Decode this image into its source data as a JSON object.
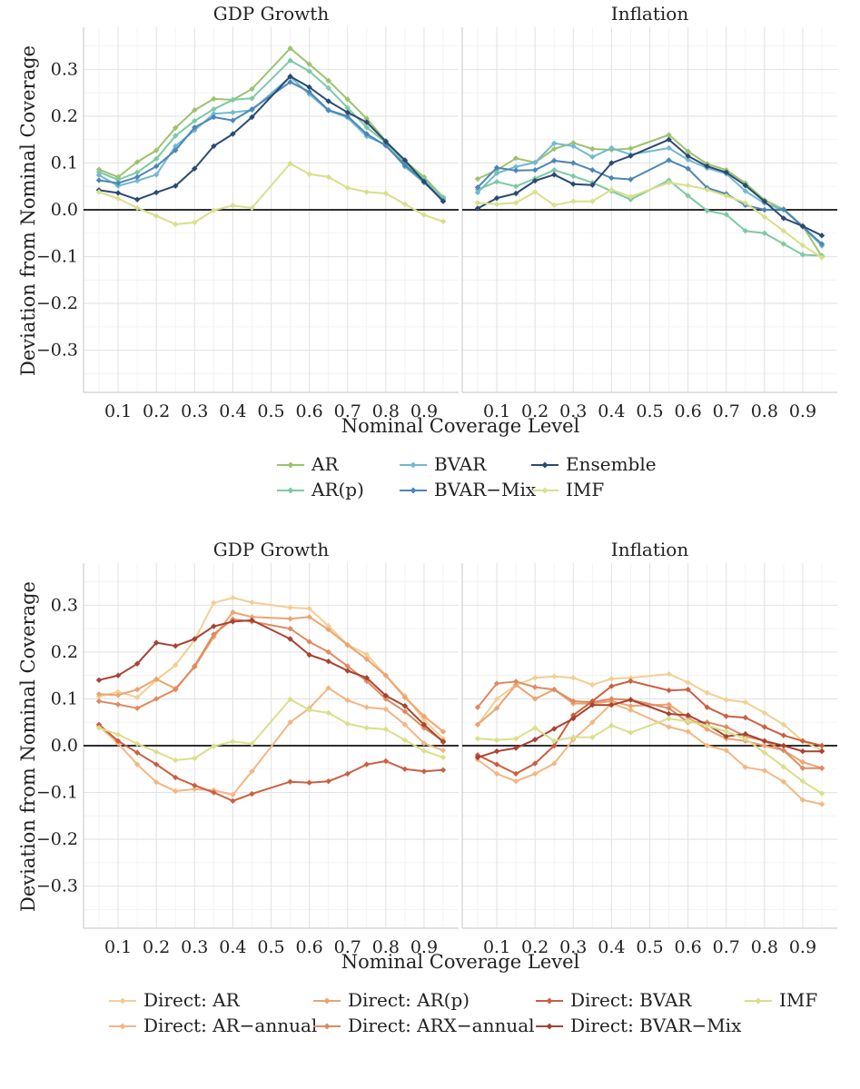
{
  "chart_data": [
    {
      "type": "line",
      "facets": [
        "GDP Growth",
        "Inflation"
      ],
      "xlabel": "Nominal Coverage Level",
      "ylabel": "Deviation from Nominal Coverage",
      "x": [
        0.05,
        0.1,
        0.15,
        0.2,
        0.25,
        0.3,
        0.35,
        0.4,
        0.45,
        0.55,
        0.6,
        0.65,
        0.7,
        0.75,
        0.8,
        0.85,
        0.9,
        0.95
      ],
      "xticks": [
        0.1,
        0.2,
        0.3,
        0.4,
        0.5,
        0.6,
        0.7,
        0.8,
        0.9
      ],
      "xtick_labels": [
        "0.1",
        "0.2",
        "0.3",
        "0.4",
        "0.5",
        "0.6",
        "0.7",
        "0.8",
        "0.9"
      ],
      "ylim": [
        -0.39,
        0.39
      ],
      "yticks": [
        -0.3,
        -0.2,
        -0.1,
        0.0,
        0.1,
        0.2,
        0.3
      ],
      "ytick_labels": [
        "−0.3",
        "−0.2",
        "−0.1",
        "0.0",
        "0.1",
        "0.2",
        "0.3"
      ],
      "grid": true,
      "legend_position": "bottom",
      "legend_columns": 3,
      "series": [
        {
          "name": "AR",
          "color": "#9dc26f",
          "GDP Growth": [
            0.086,
            0.07,
            0.102,
            0.127,
            0.175,
            0.213,
            0.237,
            0.235,
            0.258,
            0.345,
            0.311,
            0.276,
            0.236,
            0.195,
            0.147,
            0.104,
            0.07,
            0.027
          ],
          "Inflation": [
            0.066,
            0.085,
            0.11,
            0.101,
            0.13,
            0.143,
            0.13,
            0.128,
            0.131,
            0.16,
            0.125,
            0.098,
            0.085,
            0.057,
            0.021,
            0.001,
            -0.034,
            -0.1
          ]
        },
        {
          "name": "AR(p)",
          "color": "#7ccaa4",
          "GDP Growth": [
            0.081,
            0.064,
            0.08,
            0.109,
            0.158,
            0.19,
            0.215,
            0.235,
            0.238,
            0.319,
            0.296,
            0.26,
            0.218,
            0.176,
            0.144,
            0.1,
            0.066,
            0.025
          ],
          "Inflation": [
            0.043,
            0.06,
            0.05,
            0.067,
            0.085,
            0.072,
            0.058,
            0.04,
            0.022,
            0.063,
            0.03,
            -0.002,
            -0.01,
            -0.045,
            -0.05,
            -0.073,
            -0.096,
            -0.098
          ]
        },
        {
          "name": "BVAR",
          "color": "#72b8d0",
          "GDP Growth": [
            0.074,
            0.051,
            0.062,
            0.075,
            0.136,
            0.17,
            0.205,
            0.208,
            0.213,
            0.284,
            0.247,
            0.212,
            0.197,
            0.157,
            0.139,
            0.092,
            0.058,
            0.022
          ],
          "Inflation": [
            0.037,
            0.078,
            0.092,
            0.101,
            0.142,
            0.136,
            0.113,
            0.132,
            0.118,
            0.132,
            0.107,
            0.089,
            0.077,
            0.04,
            0.014,
            0.0,
            -0.036,
            -0.077
          ]
        },
        {
          "name": "BVAR−Mix",
          "color": "#4c86b8",
          "GDP Growth": [
            0.063,
            0.057,
            0.07,
            0.093,
            0.127,
            0.176,
            0.198,
            0.191,
            0.215,
            0.273,
            0.252,
            0.213,
            0.2,
            0.162,
            0.137,
            0.095,
            0.061,
            0.019
          ],
          "Inflation": [
            0.048,
            0.09,
            0.084,
            0.085,
            0.105,
            0.1,
            0.085,
            0.068,
            0.065,
            0.106,
            0.088,
            0.047,
            0.034,
            0.01,
            0.0,
            0.001,
            -0.036,
            -0.073
          ]
        },
        {
          "name": "Ensemble",
          "color": "#2a4a73",
          "GDP Growth": [
            0.042,
            0.036,
            0.022,
            0.037,
            0.051,
            0.088,
            0.136,
            0.162,
            0.198,
            0.285,
            0.262,
            0.232,
            0.208,
            0.187,
            0.146,
            0.106,
            0.06,
            0.018
          ],
          "Inflation": [
            0.003,
            0.025,
            0.035,
            0.062,
            0.075,
            0.055,
            0.053,
            0.1,
            0.115,
            0.15,
            0.115,
            0.093,
            0.08,
            0.052,
            0.018,
            -0.018,
            -0.035,
            -0.055
          ]
        },
        {
          "name": "IMF",
          "color": "#d9df8a",
          "GDP Growth": [
            0.038,
            0.024,
            0.004,
            -0.013,
            -0.031,
            -0.027,
            -0.001,
            0.009,
            0.004,
            0.099,
            0.076,
            0.07,
            0.047,
            0.038,
            0.035,
            0.012,
            -0.011,
            -0.025
          ],
          "Inflation": [
            0.015,
            0.012,
            0.015,
            0.038,
            0.01,
            0.018,
            0.018,
            0.043,
            0.028,
            0.058,
            0.052,
            0.043,
            0.03,
            0.015,
            -0.015,
            -0.045,
            -0.076,
            -0.102
          ]
        }
      ]
    },
    {
      "type": "line",
      "facets": [
        "GDP Growth",
        "Inflation"
      ],
      "xlabel": "Nominal Coverage Level",
      "ylabel": "Deviation from Nominal Coverage",
      "x": [
        0.05,
        0.1,
        0.15,
        0.2,
        0.25,
        0.3,
        0.35,
        0.4,
        0.45,
        0.55,
        0.6,
        0.65,
        0.7,
        0.75,
        0.8,
        0.85,
        0.9,
        0.95
      ],
      "xticks": [
        0.1,
        0.2,
        0.3,
        0.4,
        0.5,
        0.6,
        0.7,
        0.8,
        0.9
      ],
      "xtick_labels": [
        "0.1",
        "0.2",
        "0.3",
        "0.4",
        "0.5",
        "0.6",
        "0.7",
        "0.8",
        "0.9"
      ],
      "ylim": [
        -0.39,
        0.39
      ],
      "yticks": [
        -0.3,
        -0.2,
        -0.1,
        0.0,
        0.1,
        0.2,
        0.3
      ],
      "ytick_labels": [
        "−0.3",
        "−0.2",
        "−0.1",
        "0.0",
        "0.1",
        "0.2",
        "0.3"
      ],
      "grid": true,
      "legend_position": "bottom",
      "legend_columns": 4,
      "series": [
        {
          "name": "Direct: AR",
          "color": "#f2cf93",
          "GDP Growth": [
            0.105,
            0.115,
            0.103,
            0.14,
            0.172,
            0.226,
            0.305,
            0.316,
            0.306,
            0.295,
            0.293,
            0.256,
            0.216,
            0.195,
            0.15,
            0.107,
            0.055,
            0.015
          ],
          "Inflation": [
            0.045,
            0.1,
            0.13,
            0.145,
            0.148,
            0.145,
            0.13,
            0.143,
            0.145,
            0.153,
            0.135,
            0.113,
            0.098,
            0.093,
            0.07,
            0.045,
            0.01,
            -0.01
          ]
        },
        {
          "name": "Direct: AR−annual",
          "color": "#f3b683",
          "GDP Growth": [
            0.042,
            0.005,
            -0.04,
            -0.078,
            -0.097,
            -0.093,
            -0.095,
            -0.105,
            -0.055,
            0.05,
            0.08,
            0.123,
            0.097,
            0.082,
            0.078,
            0.045,
            0.005,
            -0.01
          ],
          "Inflation": [
            -0.03,
            -0.06,
            -0.076,
            -0.06,
            -0.038,
            0.013,
            0.05,
            0.09,
            0.076,
            0.04,
            0.03,
            0.0,
            -0.01,
            -0.046,
            -0.053,
            -0.077,
            -0.116,
            -0.125
          ]
        },
        {
          "name": "Direct: AR(p)",
          "color": "#eea370",
          "GDP Growth": [
            0.11,
            0.108,
            0.12,
            0.142,
            0.122,
            0.168,
            0.232,
            0.285,
            0.275,
            0.271,
            0.275,
            0.248,
            0.215,
            0.185,
            0.15,
            0.103,
            0.063,
            0.03
          ],
          "Inflation": [
            0.045,
            0.08,
            0.13,
            0.1,
            0.12,
            0.09,
            0.09,
            0.095,
            0.085,
            0.088,
            0.06,
            0.035,
            0.015,
            0.01,
            0.0,
            -0.01,
            -0.035,
            -0.048
          ]
        },
        {
          "name": "Direct: ARX−annual",
          "color": "#de8a61",
          "GDP Growth": [
            0.095,
            0.088,
            0.08,
            0.1,
            0.12,
            0.17,
            0.238,
            0.27,
            0.265,
            0.25,
            0.222,
            0.2,
            0.17,
            0.138,
            0.1,
            0.073,
            0.038,
            0.01
          ],
          "Inflation": [
            0.082,
            0.133,
            0.137,
            0.125,
            0.12,
            0.095,
            0.093,
            0.1,
            0.098,
            0.08,
            0.05,
            0.05,
            0.04,
            0.02,
            0.01,
            -0.01,
            -0.048,
            -0.048
          ]
        },
        {
          "name": "Direct: BVAR",
          "color": "#cc5f3e",
          "GDP Growth": [
            0.045,
            0.01,
            -0.015,
            -0.04,
            -0.068,
            -0.085,
            -0.1,
            -0.118,
            -0.103,
            -0.077,
            -0.079,
            -0.076,
            -0.06,
            -0.04,
            -0.033,
            -0.05,
            -0.055,
            -0.052
          ],
          "Inflation": [
            -0.02,
            -0.04,
            -0.06,
            -0.038,
            0.0,
            0.065,
            0.095,
            0.127,
            0.138,
            0.118,
            0.12,
            0.082,
            0.063,
            0.06,
            0.04,
            0.022,
            0.01,
            0.0
          ]
        },
        {
          "name": "Direct: BVAR−Mix",
          "color": "#a84232",
          "GDP Growth": [
            0.14,
            0.15,
            0.175,
            0.22,
            0.213,
            0.228,
            0.255,
            0.265,
            0.268,
            0.228,
            0.194,
            0.18,
            0.16,
            0.145,
            0.107,
            0.085,
            0.045,
            0.008
          ],
          "Inflation": [
            -0.025,
            -0.012,
            -0.005,
            0.013,
            0.036,
            0.058,
            0.087,
            0.087,
            0.098,
            0.068,
            0.065,
            0.045,
            0.02,
            0.025,
            0.01,
            0.0,
            -0.012,
            -0.012
          ]
        },
        {
          "name": "IMF",
          "color": "#d9df8a",
          "GDP Growth": [
            0.038,
            0.024,
            0.004,
            -0.013,
            -0.031,
            -0.027,
            -0.001,
            0.009,
            0.004,
            0.099,
            0.076,
            0.07,
            0.047,
            0.038,
            0.035,
            0.012,
            -0.011,
            -0.025
          ],
          "Inflation": [
            0.015,
            0.012,
            0.015,
            0.038,
            0.01,
            0.018,
            0.018,
            0.043,
            0.028,
            0.058,
            0.052,
            0.043,
            0.03,
            0.015,
            -0.015,
            -0.045,
            -0.076,
            -0.102
          ]
        }
      ]
    }
  ]
}
